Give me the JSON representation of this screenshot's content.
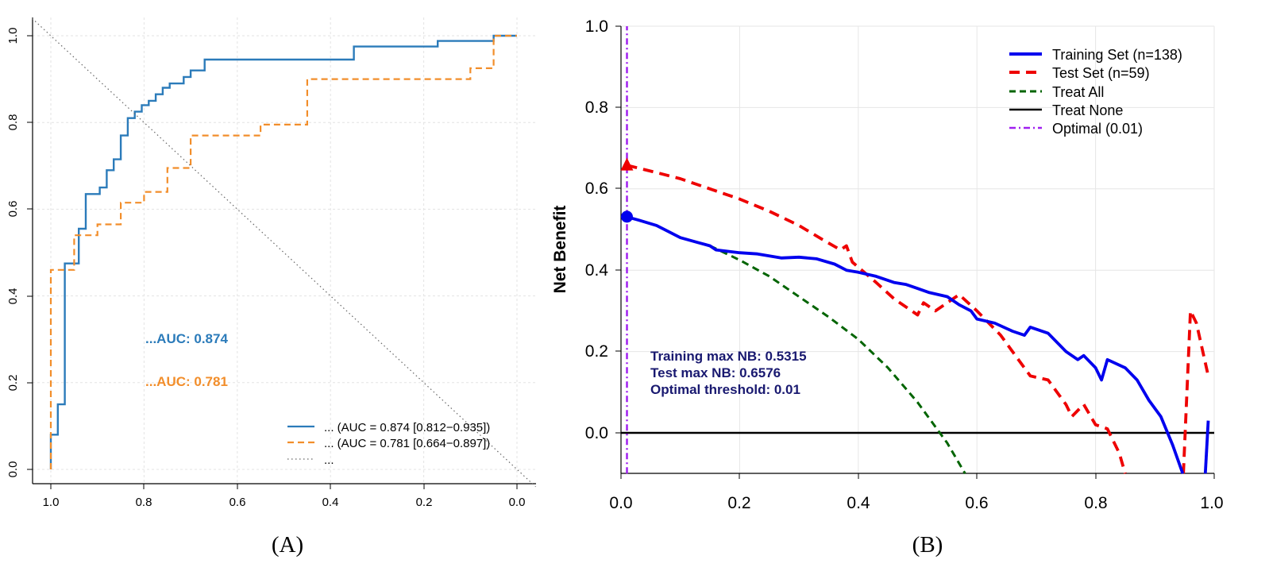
{
  "panels": {
    "a": {
      "caption": "(A)"
    },
    "b": {
      "caption": "(B)"
    }
  },
  "chart_data": [
    {
      "type": "line",
      "title": "",
      "xlabel": "",
      "ylabel": "",
      "xlim": [
        1.0,
        0.0
      ],
      "ylim": [
        0.0,
        1.0
      ],
      "xaxis_reversed": true,
      "grid": true,
      "x_ticks": [
        "1.0",
        "0.8",
        "0.6",
        "0.4",
        "0.2",
        "0.0"
      ],
      "y_ticks": [
        "0.0",
        "0.2",
        "0.4",
        "0.6",
        "0.8",
        "1.0"
      ],
      "annotations": [
        {
          "text": "...AUC: 0.874",
          "color": "#2b7bba",
          "at": [
            0.8,
            0.3
          ]
        },
        {
          "text": "...AUC: 0.781",
          "color": "#f28e2b",
          "at": [
            0.8,
            0.2
          ]
        }
      ],
      "legend_position": "bottom-right",
      "series": [
        {
          "name": "... (AUC = 0.874 [0.812−0.935])",
          "color": "#2b7bba",
          "dash": "solid",
          "points": [
            [
              1.0,
              0.0
            ],
            [
              1.0,
              0.08
            ],
            [
              0.985,
              0.08
            ],
            [
              0.985,
              0.15
            ],
            [
              0.97,
              0.15
            ],
            [
              0.97,
              0.475
            ],
            [
              0.94,
              0.475
            ],
            [
              0.94,
              0.555
            ],
            [
              0.925,
              0.555
            ],
            [
              0.925,
              0.635
            ],
            [
              0.895,
              0.635
            ],
            [
              0.895,
              0.65
            ],
            [
              0.88,
              0.65
            ],
            [
              0.88,
              0.69
            ],
            [
              0.865,
              0.69
            ],
            [
              0.865,
              0.715
            ],
            [
              0.85,
              0.715
            ],
            [
              0.85,
              0.77
            ],
            [
              0.835,
              0.77
            ],
            [
              0.835,
              0.81
            ],
            [
              0.82,
              0.81
            ],
            [
              0.82,
              0.825
            ],
            [
              0.805,
              0.825
            ],
            [
              0.805,
              0.84
            ],
            [
              0.79,
              0.84
            ],
            [
              0.79,
              0.85
            ],
            [
              0.775,
              0.85
            ],
            [
              0.775,
              0.865
            ],
            [
              0.76,
              0.865
            ],
            [
              0.76,
              0.88
            ],
            [
              0.745,
              0.88
            ],
            [
              0.745,
              0.89
            ],
            [
              0.715,
              0.89
            ],
            [
              0.715,
              0.905
            ],
            [
              0.7,
              0.905
            ],
            [
              0.7,
              0.92
            ],
            [
              0.67,
              0.92
            ],
            [
              0.67,
              0.945
            ],
            [
              0.35,
              0.945
            ],
            [
              0.35,
              0.975
            ],
            [
              0.17,
              0.975
            ],
            [
              0.17,
              0.988
            ],
            [
              0.05,
              0.988
            ],
            [
              0.05,
              1.0
            ],
            [
              0.0,
              1.0
            ]
          ]
        },
        {
          "name": "... (AUC = 0.781 [0.664−0.897])",
          "color": "#f28e2b",
          "dash": "dashed",
          "points": [
            [
              1.0,
              0.0
            ],
            [
              1.0,
              0.46
            ],
            [
              0.95,
              0.46
            ],
            [
              0.95,
              0.54
            ],
            [
              0.9,
              0.54
            ],
            [
              0.9,
              0.565
            ],
            [
              0.85,
              0.565
            ],
            [
              0.85,
              0.615
            ],
            [
              0.8,
              0.615
            ],
            [
              0.8,
              0.64
            ],
            [
              0.75,
              0.64
            ],
            [
              0.75,
              0.695
            ],
            [
              0.7,
              0.695
            ],
            [
              0.7,
              0.77
            ],
            [
              0.55,
              0.77
            ],
            [
              0.55,
              0.795
            ],
            [
              0.45,
              0.795
            ],
            [
              0.45,
              0.9
            ],
            [
              0.1,
              0.9
            ],
            [
              0.1,
              0.925
            ],
            [
              0.05,
              0.925
            ],
            [
              0.05,
              1.0
            ],
            [
              0.0,
              1.0
            ]
          ]
        },
        {
          "name": "...",
          "color": "#666666",
          "dash": "dotted",
          "points": [
            [
              1.0,
              1.0
            ],
            [
              0.0,
              0.0
            ]
          ]
        }
      ]
    },
    {
      "type": "line",
      "title": "",
      "xlabel": "",
      "ylabel": "Net Benefit",
      "xlim": [
        0.0,
        1.0
      ],
      "ylim": [
        -0.1,
        1.0
      ],
      "grid": true,
      "x_ticks": [
        "0.0",
        "0.2",
        "0.4",
        "0.6",
        "0.8",
        "1.0"
      ],
      "y_ticks": [
        "0.0",
        "0.2",
        "0.4",
        "0.6",
        "0.8",
        "1.0"
      ],
      "legend_position": "top-right",
      "annotations": [
        {
          "text": "Training max NB: 0.5315",
          "color": "#191970"
        },
        {
          "text": "Test max NB: 0.6576",
          "color": "#191970"
        },
        {
          "text": "Optimal threshold: 0.01",
          "color": "#191970"
        }
      ],
      "markers": [
        {
          "series": "Training Set (n=138)",
          "x": 0.01,
          "y": 0.5315,
          "shape": "circle",
          "color": "#0000ee"
        },
        {
          "series": "Test Set (n=59)",
          "x": 0.01,
          "y": 0.6576,
          "shape": "triangle",
          "color": "#ee0000"
        }
      ],
      "series": [
        {
          "name": "Training Set (n=138)",
          "color": "#0000ee",
          "dash": "solid",
          "points": [
            [
              0.01,
              0.531
            ],
            [
              0.03,
              0.523
            ],
            [
              0.06,
              0.51
            ],
            [
              0.08,
              0.495
            ],
            [
              0.1,
              0.48
            ],
            [
              0.13,
              0.468
            ],
            [
              0.15,
              0.46
            ],
            [
              0.16,
              0.45
            ],
            [
              0.2,
              0.443
            ],
            [
              0.23,
              0.44
            ],
            [
              0.25,
              0.435
            ],
            [
              0.27,
              0.43
            ],
            [
              0.3,
              0.432
            ],
            [
              0.33,
              0.428
            ],
            [
              0.36,
              0.415
            ],
            [
              0.38,
              0.4
            ],
            [
              0.4,
              0.395
            ],
            [
              0.43,
              0.385
            ],
            [
              0.46,
              0.37
            ],
            [
              0.48,
              0.365
            ],
            [
              0.5,
              0.355
            ],
            [
              0.52,
              0.345
            ],
            [
              0.55,
              0.335
            ],
            [
              0.57,
              0.315
            ],
            [
              0.59,
              0.3
            ],
            [
              0.6,
              0.28
            ],
            [
              0.63,
              0.27
            ],
            [
              0.66,
              0.25
            ],
            [
              0.68,
              0.24
            ],
            [
              0.69,
              0.26
            ],
            [
              0.72,
              0.245
            ],
            [
              0.75,
              0.2
            ],
            [
              0.77,
              0.18
            ],
            [
              0.78,
              0.19
            ],
            [
              0.8,
              0.16
            ],
            [
              0.81,
              0.13
            ],
            [
              0.82,
              0.18
            ],
            [
              0.85,
              0.16
            ],
            [
              0.87,
              0.13
            ],
            [
              0.89,
              0.08
            ],
            [
              0.91,
              0.04
            ],
            [
              0.93,
              -0.03
            ],
            [
              0.947,
              -0.1
            ]
          ]
        },
        {
          "name": "Test Set (n=59)",
          "color": "#ee0000",
          "dash": "dashed",
          "points": [
            [
              0.01,
              0.658
            ],
            [
              0.06,
              0.64
            ],
            [
              0.1,
              0.625
            ],
            [
              0.15,
              0.6
            ],
            [
              0.2,
              0.575
            ],
            [
              0.25,
              0.545
            ],
            [
              0.3,
              0.51
            ],
            [
              0.34,
              0.475
            ],
            [
              0.37,
              0.45
            ],
            [
              0.38,
              0.46
            ],
            [
              0.39,
              0.42
            ],
            [
              0.43,
              0.37
            ],
            [
              0.46,
              0.33
            ],
            [
              0.48,
              0.31
            ],
            [
              0.5,
              0.29
            ],
            [
              0.51,
              0.32
            ],
            [
              0.53,
              0.3
            ],
            [
              0.55,
              0.32
            ],
            [
              0.57,
              0.34
            ],
            [
              0.6,
              0.3
            ],
            [
              0.64,
              0.24
            ],
            [
              0.66,
              0.2
            ],
            [
              0.69,
              0.14
            ],
            [
              0.72,
              0.13
            ],
            [
              0.75,
              0.07
            ],
            [
              0.76,
              0.04
            ],
            [
              0.78,
              0.07
            ],
            [
              0.8,
              0.02
            ],
            [
              0.82,
              0.01
            ],
            [
              0.84,
              -0.05
            ],
            [
              0.85,
              -0.1
            ]
          ]
        },
        {
          "name": "Treat All",
          "color": "#006400",
          "dash": "dashed",
          "points": [
            [
              0.15,
              0.46
            ],
            [
              0.2,
              0.425
            ],
            [
              0.25,
              0.385
            ],
            [
              0.3,
              0.335
            ],
            [
              0.35,
              0.285
            ],
            [
              0.4,
              0.23
            ],
            [
              0.45,
              0.16
            ],
            [
              0.5,
              0.075
            ],
            [
              0.55,
              -0.025
            ],
            [
              0.58,
              -0.1
            ]
          ]
        },
        {
          "name": "Treat None",
          "color": "#000000",
          "dash": "solid",
          "points": [
            [
              0.0,
              0.0
            ],
            [
              1.0,
              0.0
            ]
          ]
        },
        {
          "name": "Optimal (0.01)",
          "color": "#a020f0",
          "dash": "dashdot",
          "points": [
            [
              0.01,
              -0.1
            ],
            [
              0.01,
              1.0
            ]
          ]
        },
        {
          "name": "",
          "color": "#ee0000",
          "dash": "dashed",
          "points": [
            [
              0.948,
              -0.1
            ],
            [
              0.96,
              0.3
            ],
            [
              0.97,
              0.27
            ],
            [
              0.99,
              0.14
            ]
          ]
        },
        {
          "name": "",
          "color": "#0000ee",
          "dash": "solid",
          "points": [
            [
              0.985,
              -0.1
            ],
            [
              0.99,
              0.03
            ]
          ]
        }
      ]
    }
  ]
}
